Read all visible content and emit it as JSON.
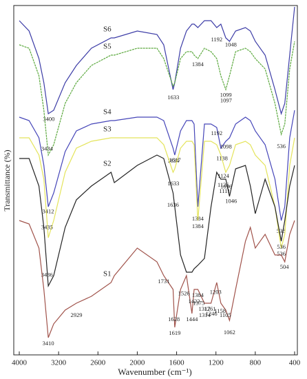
{
  "chart_data": {
    "type": "line",
    "x_label": "Wavenumber (cm⁻¹)",
    "y_label": "Transmittance (%)",
    "x": [
      4000,
      3800,
      3600,
      3500,
      3410,
      3300,
      3100,
      2929,
      2700,
      2400,
      2350,
      2000,
      1800,
      1731,
      1636,
      1619,
      1560,
      1500,
      1444,
      1422,
      1384,
      1317,
      1250,
      1192,
      1150,
      1100,
      1062,
      1000,
      900,
      850,
      800,
      700,
      600,
      536,
      500,
      450,
      400
    ],
    "xlim": [
      4000,
      400
    ],
    "xticks": [
      4000,
      3200,
      2600,
      2000,
      1600,
      1200,
      800,
      400
    ],
    "ylim": [
      0,
      100
    ],
    "series": [
      {
        "name": "S6",
        "color": "#3b3ba6",
        "values": [
          96,
          93,
          85,
          78,
          69,
          70,
          78,
          83,
          88,
          91,
          91,
          93,
          92,
          89,
          76,
          78,
          88,
          93,
          95,
          95,
          94,
          96,
          96,
          94,
          95,
          91,
          90,
          93,
          94,
          93,
          90,
          86,
          76,
          69,
          72,
          86,
          100
        ],
        "peaks": [
          3400,
          1192,
          1048
        ]
      },
      {
        "name": "S5",
        "color": "#5aa83c",
        "values": [
          89,
          88,
          80,
          70,
          57,
          60,
          72,
          78,
          83,
          86,
          86,
          88,
          88,
          85,
          77,
          78,
          85,
          87,
          87,
          86,
          85,
          88,
          87,
          85,
          80,
          76,
          80,
          87,
          88,
          87,
          85,
          82,
          72,
          63,
          66,
          82,
          90
        ],
        "peaks": [
          3434,
          1633,
          1384,
          1097,
          1099,
          536
        ]
      },
      {
        "name": "S4",
        "color": "#4444b8",
        "values": [
          68,
          67,
          62,
          54,
          42,
          46,
          58,
          64,
          66,
          67,
          67,
          68,
          68,
          67,
          59,
          57,
          64,
          67,
          67,
          66,
          42,
          66,
          66,
          65,
          59,
          61,
          62,
          66,
          68,
          67,
          64,
          60,
          50,
          38,
          42,
          62,
          70
        ],
        "peaks": [
          3412,
          1634,
          1617,
          1384,
          1192,
          1138,
          1098,
          538
        ]
      },
      {
        "name": "S3",
        "color": "#e4e45a",
        "values": [
          62,
          62,
          57,
          50,
          33,
          38,
          52,
          59,
          61,
          62,
          62,
          62,
          62,
          60,
          52,
          53,
          59,
          61,
          61,
          60,
          38,
          61,
          61,
          60,
          57,
          52,
          54,
          60,
          61,
          60,
          57,
          54,
          42,
          30,
          34,
          54,
          62
        ],
        "peaks": [
          3435,
          1633,
          1384,
          1124,
          536
        ]
      },
      {
        "name": "S2",
        "color": "#222222",
        "values": [
          56,
          56,
          48,
          36,
          19,
          22,
          36,
          44,
          48,
          52,
          49,
          54,
          57,
          56,
          46,
          42,
          28,
          23,
          23,
          24,
          25,
          27,
          42,
          52,
          50,
          50,
          45,
          53,
          54,
          48,
          40,
          50,
          42,
          32,
          38,
          48,
          54
        ],
        "peaks": [
          3436,
          1636,
          1126,
          1111,
          1096,
          1046,
          536
        ]
      },
      {
        "name": "S1",
        "color": "#a0524a",
        "values": [
          38,
          37,
          30,
          18,
          4,
          8,
          12,
          14,
          16,
          20,
          22,
          30,
          26,
          22,
          18,
          7,
          18,
          22,
          11,
          18,
          18,
          14,
          14,
          20,
          14,
          12,
          9,
          18,
          32,
          36,
          30,
          34,
          28,
          28,
          26,
          34,
          38
        ],
        "peaks": [
          3410,
          2929,
          1731,
          1628,
          1619,
          1526,
          1444,
          1422,
          1384,
          1375,
          1317,
          1314,
          1261,
          1246,
          1203,
          1158,
          1105,
          1062,
          504
        ]
      }
    ]
  }
}
